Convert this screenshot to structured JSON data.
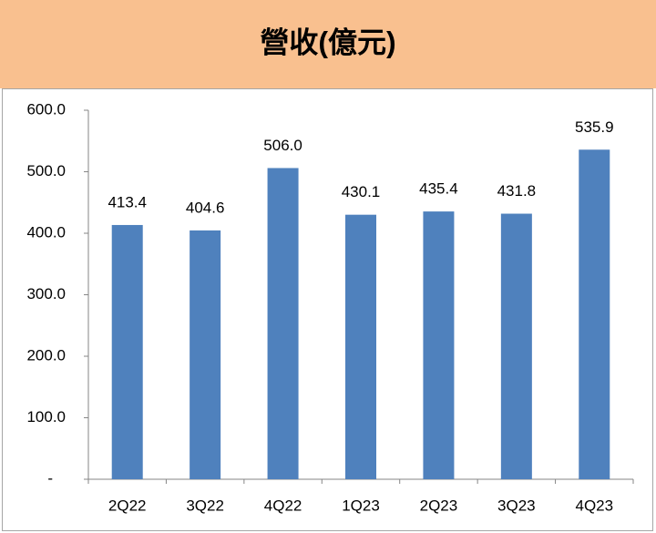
{
  "chart_data": {
    "type": "bar",
    "title": "營收(億元)",
    "categories": [
      "2Q22",
      "3Q22",
      "4Q22",
      "1Q23",
      "2Q23",
      "3Q23",
      "4Q23"
    ],
    "values": [
      413.4,
      404.6,
      506.0,
      430.1,
      435.4,
      431.8,
      535.9
    ],
    "value_labels": [
      "413.4",
      "404.6",
      "506.0",
      "430.1",
      "435.4",
      "431.8",
      "535.9"
    ],
    "color": "#4f81bd",
    "ylim": [
      0,
      600
    ],
    "yticks": [
      {
        "value": 0,
        "label": "-"
      },
      {
        "value": 100,
        "label": "100.0"
      },
      {
        "value": 200,
        "label": "200.0"
      },
      {
        "value": 300,
        "label": "300.0"
      },
      {
        "value": 400,
        "label": "400.0"
      },
      {
        "value": 500,
        "label": "500.0"
      },
      {
        "value": 600,
        "label": "600.0"
      }
    ]
  }
}
